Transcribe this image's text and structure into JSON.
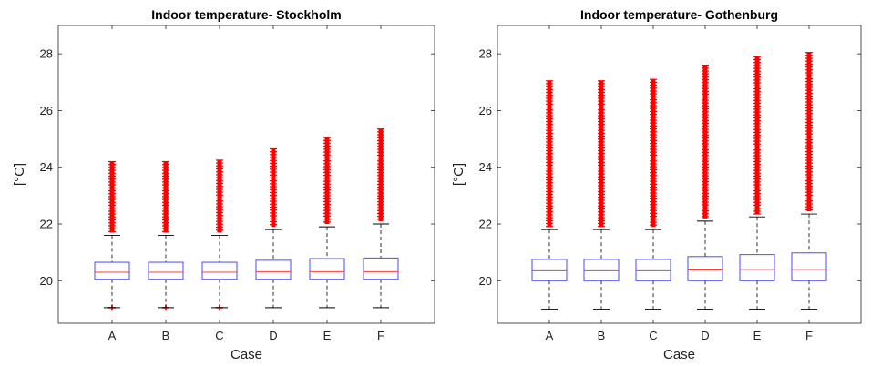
{
  "chart_data": [
    {
      "type": "boxplot",
      "title": "Indoor temperature- Stockholm",
      "xlabel": "Case",
      "ylabel": "[°C]",
      "ylim": [
        18.5,
        29
      ],
      "yticks": [
        20,
        22,
        24,
        26,
        28
      ],
      "grid": false,
      "legend": "none",
      "colors": {
        "box": "#4a4aff",
        "median": "#ff3a3a",
        "outlier": "#ff0000",
        "whisker": "#000000"
      },
      "categories": [
        "A",
        "B",
        "C",
        "D",
        "E",
        "F"
      ],
      "boxes": [
        {
          "q1": 20.05,
          "median": 20.3,
          "q3": 20.65,
          "whisker_low": 19.05,
          "whisker_high": 21.6,
          "outlier_high": 24.2,
          "outlier_low": 19.05
        },
        {
          "q1": 20.05,
          "median": 20.3,
          "q3": 20.65,
          "whisker_low": 19.05,
          "whisker_high": 21.6,
          "outlier_high": 24.2,
          "outlier_low": 19.05
        },
        {
          "q1": 20.05,
          "median": 20.3,
          "q3": 20.65,
          "whisker_low": 19.05,
          "whisker_high": 21.6,
          "outlier_high": 24.25,
          "outlier_low": 19.05
        },
        {
          "q1": 20.05,
          "median": 20.32,
          "q3": 20.72,
          "whisker_low": 19.05,
          "whisker_high": 21.8,
          "outlier_high": 24.65
        },
        {
          "q1": 20.05,
          "median": 20.32,
          "q3": 20.78,
          "whisker_low": 19.05,
          "whisker_high": 21.9,
          "outlier_high": 25.05
        },
        {
          "q1": 20.05,
          "median": 20.32,
          "q3": 20.8,
          "whisker_low": 19.05,
          "whisker_high": 22.0,
          "outlier_high": 25.35
        }
      ]
    },
    {
      "type": "boxplot",
      "title": "Indoor temperature- Gothenburg",
      "xlabel": "Case",
      "ylabel": "[°C]",
      "ylim": [
        18.5,
        29
      ],
      "yticks": [
        20,
        22,
        24,
        26,
        28
      ],
      "grid": false,
      "legend": "none",
      "colors": {
        "box": "#4a4aff",
        "median": "#ff3a3a",
        "outlier": "#ff0000",
        "whisker": "#000000"
      },
      "categories": [
        "A",
        "B",
        "C",
        "D",
        "E",
        "F"
      ],
      "boxes": [
        {
          "q1": 20.0,
          "median": 20.35,
          "q3": 20.75,
          "whisker_low": 19.0,
          "whisker_high": 21.8,
          "outlier_high": 27.05
        },
        {
          "q1": 20.0,
          "median": 20.35,
          "q3": 20.75,
          "whisker_low": 19.0,
          "whisker_high": 21.8,
          "outlier_high": 27.05
        },
        {
          "q1": 20.0,
          "median": 20.35,
          "q3": 20.75,
          "whisker_low": 19.0,
          "whisker_high": 21.8,
          "outlier_high": 27.1
        },
        {
          "q1": 20.0,
          "median": 20.38,
          "q3": 20.85,
          "whisker_low": 19.0,
          "whisker_high": 22.1,
          "outlier_high": 27.6
        },
        {
          "q1": 20.0,
          "median": 20.4,
          "q3": 20.92,
          "whisker_low": 19.0,
          "whisker_high": 22.25,
          "outlier_high": 27.9
        },
        {
          "q1": 20.0,
          "median": 20.4,
          "q3": 20.98,
          "whisker_low": 19.0,
          "whisker_high": 22.35,
          "outlier_high": 28.05
        }
      ]
    }
  ]
}
